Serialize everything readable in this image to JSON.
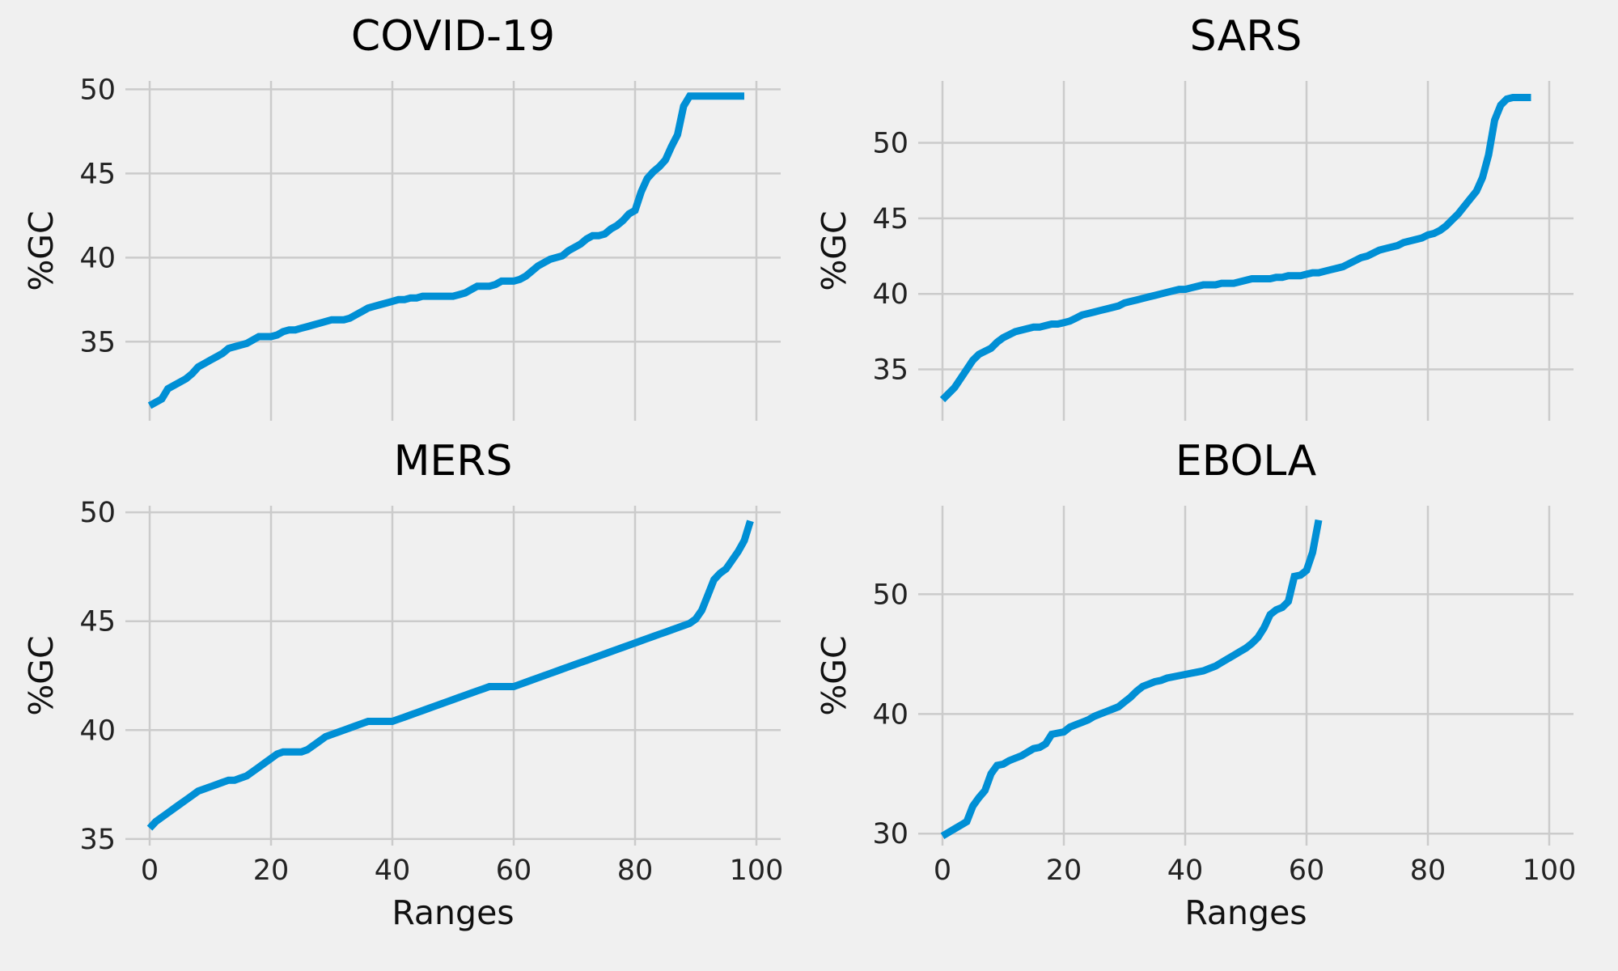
{
  "figure": {
    "background": "#f0f0f0",
    "line_color": "#008fd5",
    "grid_color": "#cbcbcb"
  },
  "chart_data": [
    {
      "type": "line",
      "title": "COVID-19",
      "xlabel": "",
      "ylabel": "%GC",
      "xlim": [
        -4,
        104
      ],
      "ylim": [
        30.3,
        50.5
      ],
      "xticks": [
        0,
        20,
        40,
        60,
        80,
        100
      ],
      "yticks": [
        35,
        40,
        45,
        50
      ],
      "show_xtick_labels": false,
      "grid": true,
      "series": [
        {
          "x": [
            0,
            2,
            3,
            4,
            5,
            6,
            7,
            8,
            9,
            10,
            11,
            12,
            13,
            14,
            15,
            16,
            17,
            18,
            19,
            20,
            21,
            22,
            23,
            24,
            25,
            26,
            27,
            28,
            29,
            30,
            31,
            32,
            33,
            34,
            35,
            36,
            37,
            38,
            39,
            40,
            41,
            42,
            43,
            44,
            45,
            46,
            47,
            48,
            49,
            50,
            51,
            52,
            53,
            54,
            55,
            56,
            57,
            58,
            59,
            60,
            61,
            62,
            63,
            64,
            65,
            66,
            67,
            68,
            69,
            70,
            71,
            72,
            73,
            74,
            75,
            76,
            77,
            78,
            79,
            80,
            81,
            82,
            83,
            84,
            85,
            86,
            87,
            88,
            89,
            90,
            91,
            92,
            93,
            94,
            95,
            96,
            97,
            98
          ],
          "y": [
            31.2,
            31.6,
            32.2,
            32.4,
            32.6,
            32.8,
            33.1,
            33.5,
            33.7,
            33.9,
            34.1,
            34.3,
            34.6,
            34.7,
            34.8,
            34.9,
            35.1,
            35.3,
            35.3,
            35.3,
            35.4,
            35.6,
            35.7,
            35.7,
            35.8,
            35.9,
            36.0,
            36.1,
            36.2,
            36.3,
            36.3,
            36.3,
            36.4,
            36.6,
            36.8,
            37.0,
            37.1,
            37.2,
            37.3,
            37.4,
            37.5,
            37.5,
            37.6,
            37.6,
            37.7,
            37.7,
            37.7,
            37.7,
            37.7,
            37.7,
            37.8,
            37.9,
            38.1,
            38.3,
            38.3,
            38.3,
            38.4,
            38.6,
            38.6,
            38.6,
            38.7,
            38.9,
            39.2,
            39.5,
            39.7,
            39.9,
            40.0,
            40.1,
            40.4,
            40.6,
            40.8,
            41.1,
            41.3,
            41.3,
            41.4,
            41.7,
            41.9,
            42.2,
            42.6,
            42.8,
            43.9,
            44.7,
            45.1,
            45.4,
            45.8,
            46.6,
            47.3,
            49.0,
            49.6,
            49.6,
            49.6,
            49.6,
            49.6,
            49.6,
            49.6,
            49.6,
            49.6,
            49.6
          ]
        }
      ]
    },
    {
      "type": "line",
      "title": "SARS",
      "xlabel": "",
      "ylabel": "%GC",
      "xlim": [
        -4,
        104
      ],
      "ylim": [
        31.6,
        54.1
      ],
      "xticks": [
        0,
        20,
        40,
        60,
        80,
        100
      ],
      "yticks": [
        35,
        40,
        45,
        50
      ],
      "show_xtick_labels": false,
      "grid": true,
      "series": [
        {
          "x": [
            0,
            1,
            2,
            3,
            4,
            5,
            6,
            7,
            8,
            9,
            10,
            11,
            12,
            13,
            14,
            15,
            16,
            17,
            18,
            19,
            20,
            21,
            22,
            23,
            24,
            25,
            26,
            27,
            28,
            29,
            30,
            31,
            32,
            33,
            34,
            35,
            36,
            37,
            38,
            39,
            40,
            41,
            42,
            43,
            44,
            45,
            46,
            47,
            48,
            49,
            50,
            51,
            52,
            53,
            54,
            55,
            56,
            57,
            58,
            59,
            60,
            61,
            62,
            63,
            64,
            65,
            66,
            67,
            68,
            69,
            70,
            71,
            72,
            73,
            74,
            75,
            76,
            77,
            78,
            79,
            80,
            81,
            82,
            83,
            84,
            85,
            86,
            87,
            88,
            89,
            90,
            91,
            92,
            93,
            94,
            95,
            96,
            97
          ],
          "y": [
            33.0,
            33.4,
            33.8,
            34.4,
            35.0,
            35.6,
            36.0,
            36.2,
            36.4,
            36.8,
            37.1,
            37.3,
            37.5,
            37.6,
            37.7,
            37.8,
            37.8,
            37.9,
            38.0,
            38.0,
            38.1,
            38.2,
            38.4,
            38.6,
            38.7,
            38.8,
            38.9,
            39.0,
            39.1,
            39.2,
            39.4,
            39.5,
            39.6,
            39.7,
            39.8,
            39.9,
            40.0,
            40.1,
            40.2,
            40.3,
            40.3,
            40.4,
            40.5,
            40.6,
            40.6,
            40.6,
            40.7,
            40.7,
            40.7,
            40.8,
            40.9,
            41.0,
            41.0,
            41.0,
            41.0,
            41.1,
            41.1,
            41.2,
            41.2,
            41.2,
            41.3,
            41.4,
            41.4,
            41.5,
            41.6,
            41.7,
            41.8,
            42.0,
            42.2,
            42.4,
            42.5,
            42.7,
            42.9,
            43.0,
            43.1,
            43.2,
            43.4,
            43.5,
            43.6,
            43.7,
            43.9,
            44.0,
            44.2,
            44.5,
            44.9,
            45.3,
            45.8,
            46.3,
            46.8,
            47.7,
            49.2,
            51.5,
            52.5,
            52.9,
            53.0,
            53.0,
            53.0,
            53.0
          ]
        }
      ]
    },
    {
      "type": "line",
      "title": "MERS",
      "xlabel": "Ranges",
      "ylabel": "%GC",
      "xlim": [
        -4,
        104
      ],
      "ylim": [
        34.7,
        50.3
      ],
      "xticks": [
        0,
        20,
        40,
        60,
        80,
        100
      ],
      "yticks": [
        35,
        40,
        45,
        50
      ],
      "show_xtick_labels": true,
      "grid": true,
      "series": [
        {
          "x": [
            0,
            1,
            2,
            3,
            4,
            5,
            6,
            7,
            8,
            9,
            10,
            11,
            12,
            13,
            14,
            15,
            16,
            17,
            18,
            19,
            20,
            21,
            22,
            23,
            24,
            25,
            26,
            27,
            28,
            29,
            30,
            31,
            32,
            33,
            34,
            35,
            36,
            37,
            38,
            39,
            40,
            41,
            42,
            43,
            44,
            45,
            46,
            47,
            48,
            49,
            50,
            51,
            52,
            53,
            54,
            55,
            56,
            57,
            58,
            59,
            60,
            61,
            62,
            63,
            64,
            65,
            66,
            67,
            68,
            69,
            70,
            71,
            72,
            73,
            74,
            75,
            76,
            77,
            78,
            79,
            80,
            81,
            82,
            83,
            84,
            85,
            86,
            87,
            88,
            89,
            90,
            91,
            92,
            93,
            94,
            95,
            96,
            97,
            98,
            99
          ],
          "y": [
            35.5,
            35.8,
            36.0,
            36.2,
            36.4,
            36.6,
            36.8,
            37.0,
            37.2,
            37.3,
            37.4,
            37.5,
            37.6,
            37.7,
            37.7,
            37.8,
            37.9,
            38.1,
            38.3,
            38.5,
            38.7,
            38.9,
            39.0,
            39.0,
            39.0,
            39.0,
            39.1,
            39.3,
            39.5,
            39.7,
            39.8,
            39.9,
            40.0,
            40.1,
            40.2,
            40.3,
            40.4,
            40.4,
            40.4,
            40.4,
            40.4,
            40.5,
            40.6,
            40.7,
            40.8,
            40.9,
            41.0,
            41.1,
            41.2,
            41.3,
            41.4,
            41.5,
            41.6,
            41.7,
            41.8,
            41.9,
            42.0,
            42.0,
            42.0,
            42.0,
            42.0,
            42.1,
            42.2,
            42.3,
            42.4,
            42.5,
            42.6,
            42.7,
            42.8,
            42.9,
            43.0,
            43.1,
            43.2,
            43.3,
            43.4,
            43.5,
            43.6,
            43.7,
            43.8,
            43.9,
            44.0,
            44.1,
            44.2,
            44.3,
            44.4,
            44.5,
            44.6,
            44.7,
            44.8,
            44.9,
            45.1,
            45.5,
            46.2,
            46.9,
            47.2,
            47.4,
            47.8,
            48.2,
            48.7,
            49.6
          ]
        }
      ]
    },
    {
      "type": "line",
      "title": "EBOLA",
      "xlabel": "Ranges",
      "ylabel": "%GC",
      "xlim": [
        -4,
        104
      ],
      "ylim": [
        29.0,
        57.4
      ],
      "xticks": [
        0,
        20,
        40,
        60,
        80,
        100
      ],
      "yticks": [
        30,
        40,
        50
      ],
      "show_xtick_labels": true,
      "grid": true,
      "series": [
        {
          "x": [
            0,
            1,
            2,
            3,
            4,
            5,
            6,
            7,
            8,
            9,
            10,
            11,
            12,
            13,
            14,
            15,
            16,
            17,
            18,
            19,
            20,
            21,
            22,
            23,
            24,
            25,
            26,
            27,
            28,
            29,
            30,
            31,
            32,
            33,
            34,
            35,
            36,
            37,
            38,
            39,
            40,
            41,
            42,
            43,
            44,
            45,
            46,
            47,
            48,
            49,
            50,
            51,
            52,
            53,
            54,
            55,
            56,
            57,
            58,
            59,
            60,
            61,
            62
          ],
          "y": [
            29.8,
            30.1,
            30.4,
            30.7,
            31.0,
            32.3,
            33.0,
            33.6,
            35.0,
            35.7,
            35.8,
            36.1,
            36.3,
            36.5,
            36.8,
            37.1,
            37.2,
            37.5,
            38.3,
            38.4,
            38.5,
            38.9,
            39.1,
            39.3,
            39.5,
            39.8,
            40.0,
            40.2,
            40.4,
            40.6,
            41.0,
            41.4,
            41.9,
            42.3,
            42.5,
            42.7,
            42.8,
            43.0,
            43.1,
            43.2,
            43.3,
            43.4,
            43.5,
            43.6,
            43.8,
            44.0,
            44.3,
            44.6,
            44.9,
            45.2,
            45.5,
            45.9,
            46.4,
            47.2,
            48.3,
            48.7,
            48.9,
            49.4,
            51.5,
            51.6,
            52.0,
            53.5,
            56.2
          ]
        }
      ]
    }
  ]
}
